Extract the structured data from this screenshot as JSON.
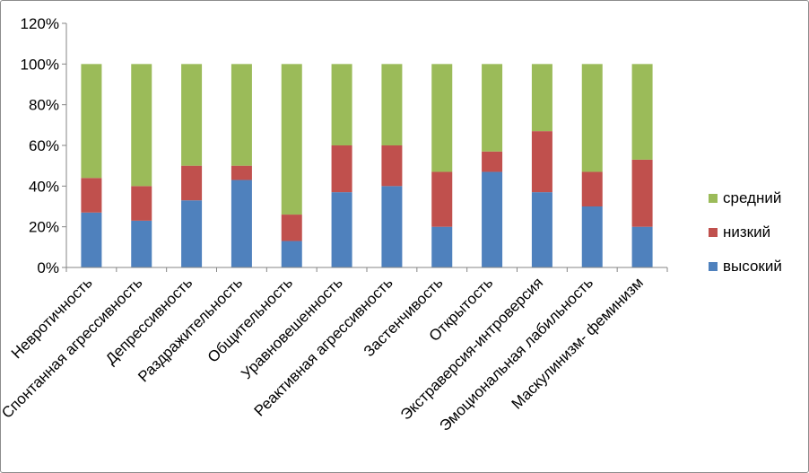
{
  "chart_data": {
    "type": "bar",
    "stacked": true,
    "categories": [
      "Невротичность",
      "Спонтанная агрессивность",
      "Депрессивность",
      "Раздражительность",
      "Общительность",
      "Уравновешенность",
      "Реактивная агрессивность",
      "Застенчивость",
      "Открытость",
      "Экстраверсия-интроверсия",
      "Эмоциональная лабильность",
      "Маскулинизм- феминизм"
    ],
    "series": [
      {
        "name": "высокий",
        "color": "#4f81bd",
        "values": [
          27,
          23,
          33,
          43,
          13,
          37,
          40,
          20,
          47,
          37,
          30,
          20
        ]
      },
      {
        "name": "низкий",
        "color": "#c0504d",
        "values": [
          17,
          17,
          17,
          7,
          13,
          23,
          20,
          27,
          10,
          30,
          17,
          33
        ]
      },
      {
        "name": "средний",
        "color": "#9bbb59",
        "values": [
          56,
          60,
          50,
          50,
          74,
          40,
          40,
          53,
          43,
          33,
          53,
          47
        ]
      }
    ],
    "ylim": [
      0,
      120
    ],
    "yticks": [
      "0%",
      "20%",
      "40%",
      "60%",
      "80%",
      "100%",
      "120%"
    ],
    "grid": false,
    "legend_position": "right",
    "legend_order": [
      "средний",
      "низкий",
      "высокий"
    ]
  }
}
